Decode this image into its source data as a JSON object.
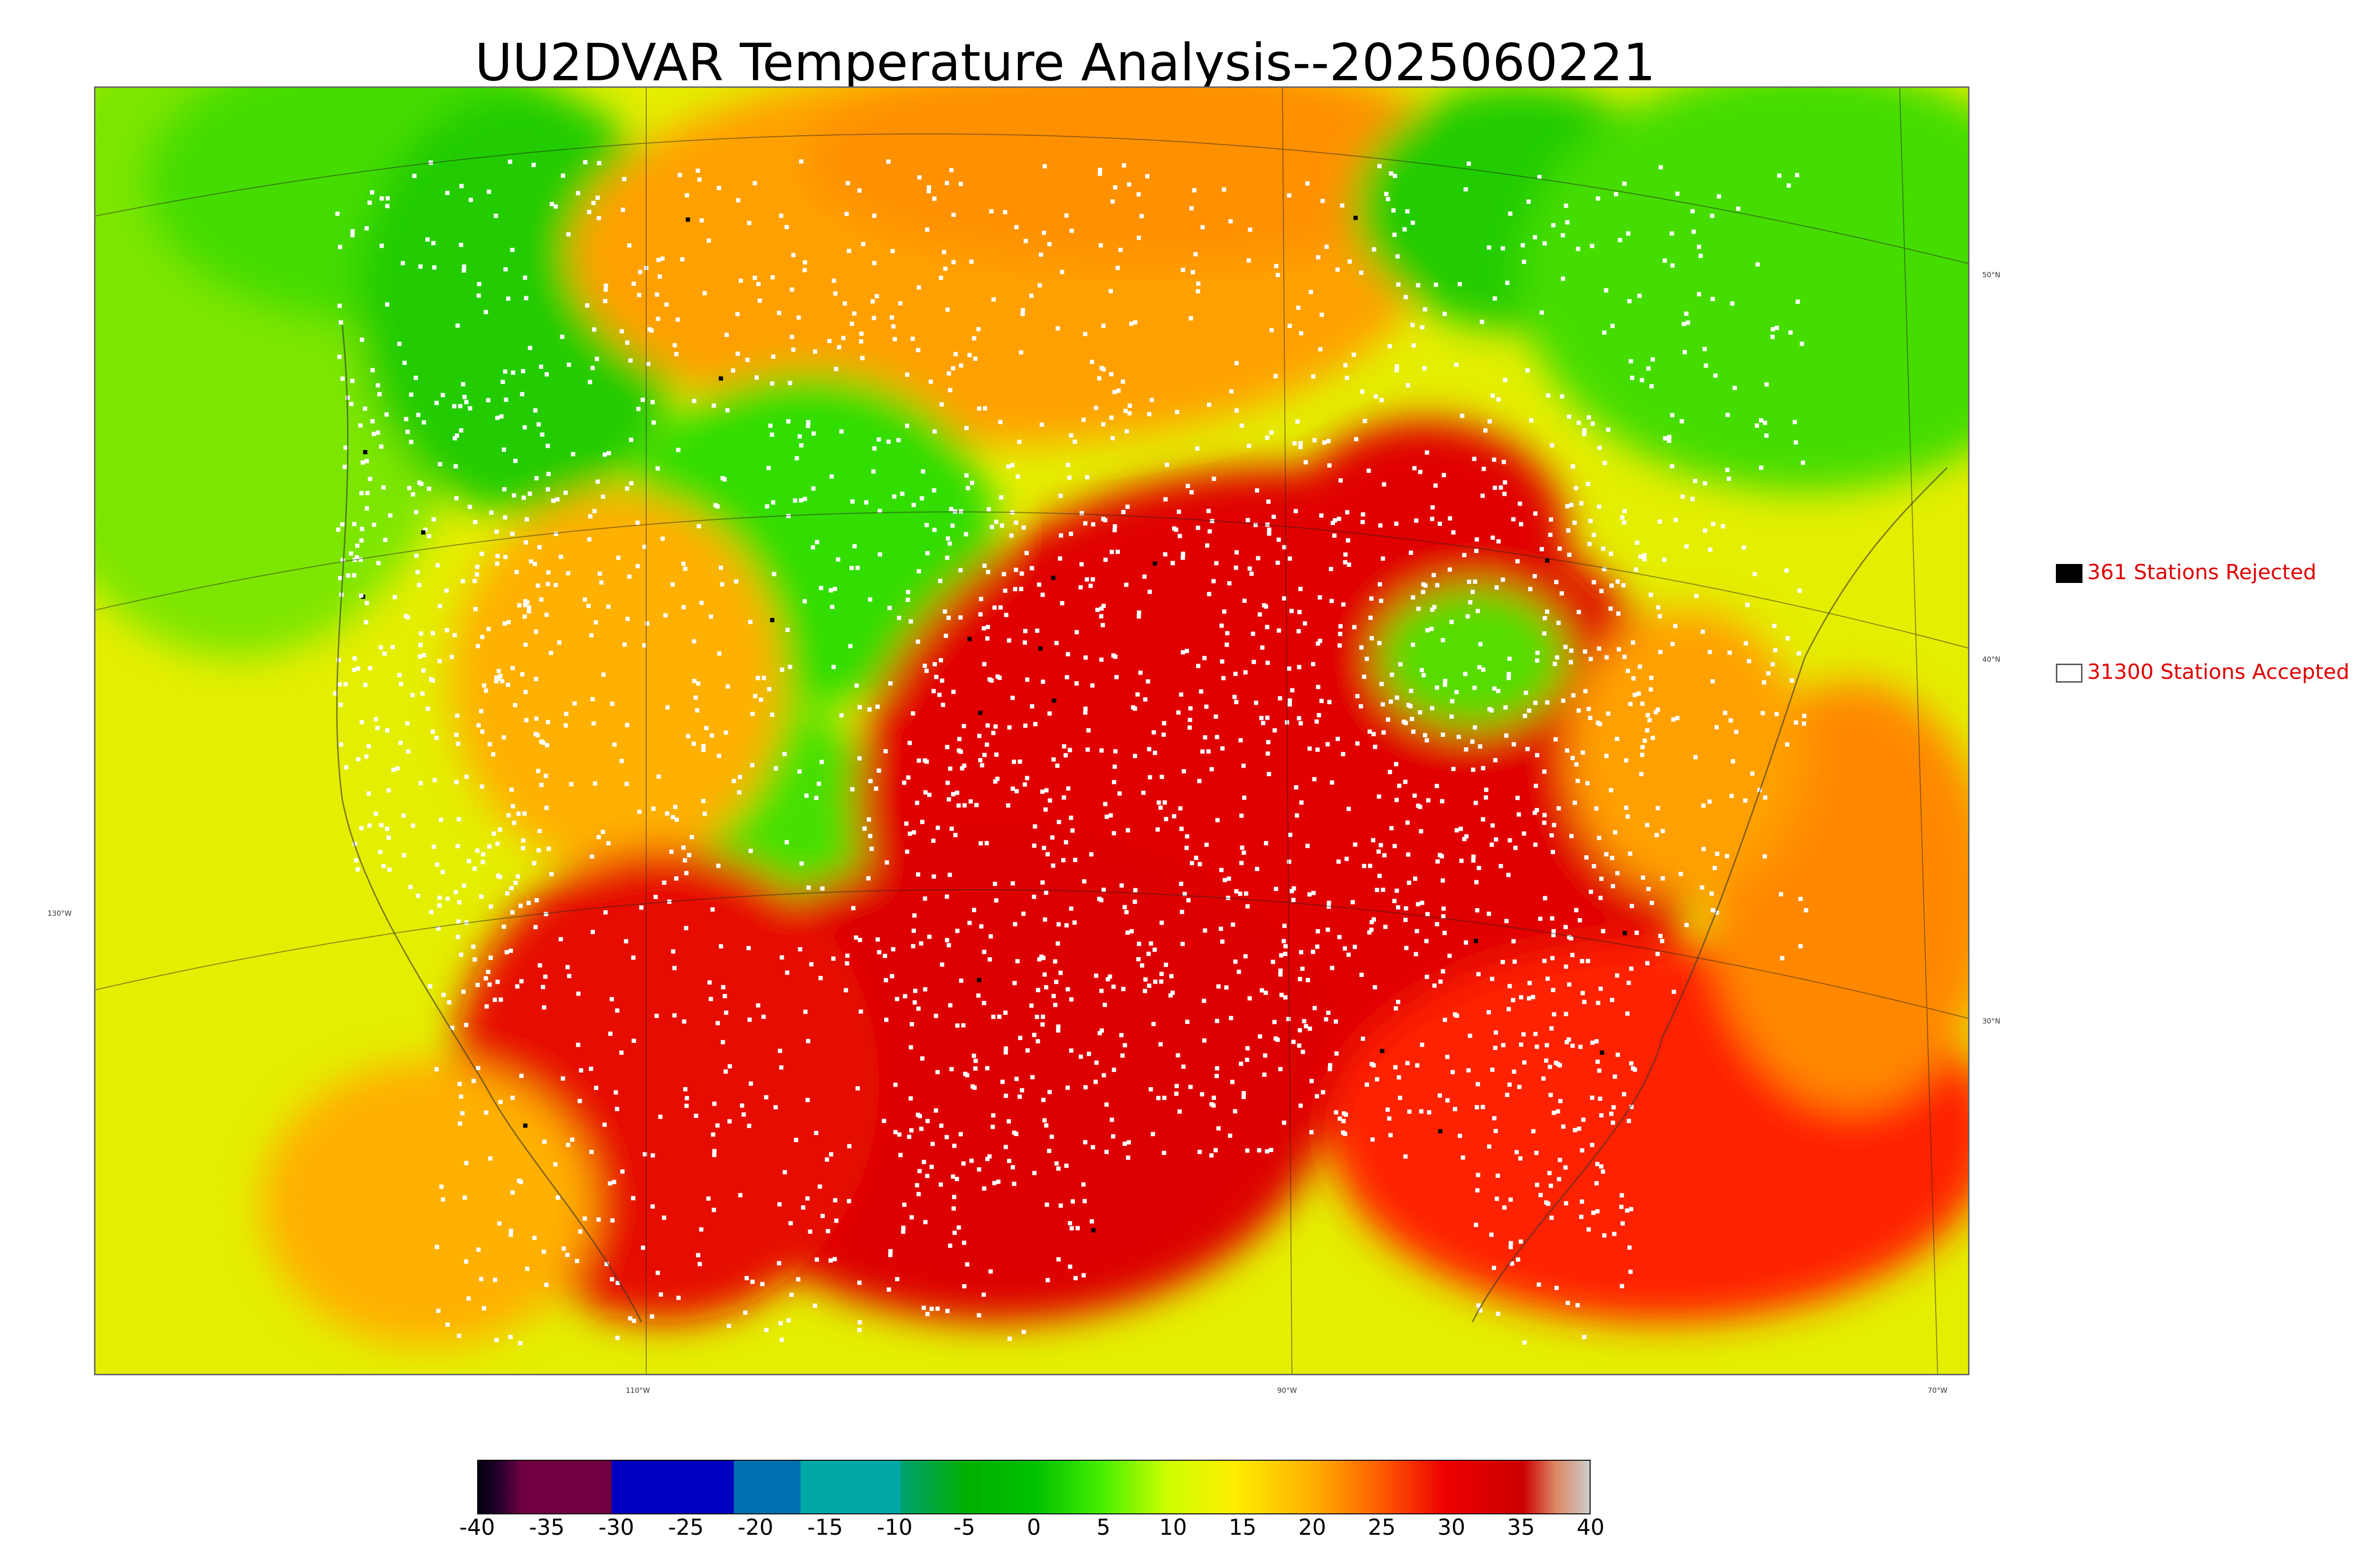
{
  "title": "UU2DVAR Temperature Analysis--2025060221",
  "legend": {
    "rejected": {
      "label": "361 Stations Rejected",
      "swatch": "#000000"
    },
    "accepted": {
      "label": "31300 Stations Accepted",
      "swatch": "#ffffff"
    }
  },
  "longitude_labels": [
    "110°W",
    "90°W",
    "70°W"
  ],
  "latitude_labels": [
    "130°W",
    "50°N",
    "40°N",
    "30°N"
  ],
  "colorbar": {
    "ticks": [
      "-40",
      "-35",
      "-30",
      "-25",
      "-20",
      "-15",
      "-10",
      "-5",
      "0",
      "5",
      "10",
      "15",
      "20",
      "25",
      "30",
      "35",
      "40"
    ],
    "range": [
      -40,
      40
    ]
  },
  "colors": {
    "hot": "#dd0000",
    "warm": "#ff9900",
    "mild": "#e6ee00",
    "cool": "#22dd00",
    "ocean_west": "#e0ee00",
    "stations": "#ffffff",
    "title_text": "#000000",
    "legend_text": "#e10000"
  }
}
